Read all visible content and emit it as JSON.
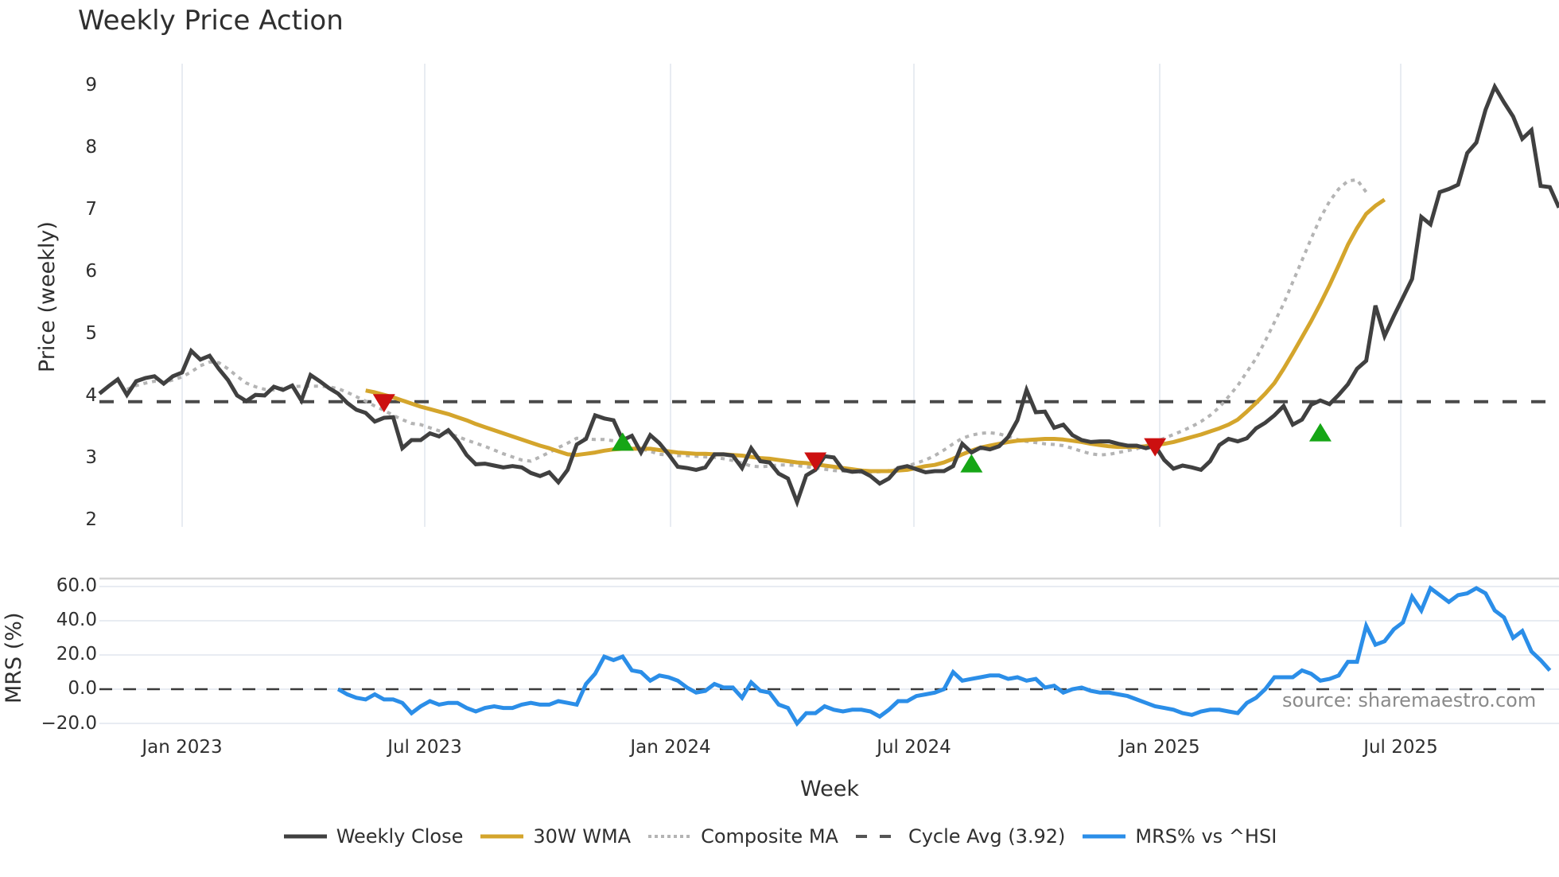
{
  "title": "Weekly Price Action",
  "source_label": "source: sharemaestro.com",
  "colors": {
    "weekly_close": "#404040",
    "wma": "#d4a52c",
    "composite": "#b4b4b4",
    "cycle_avg": "#4a4a4a",
    "mrs": "#2b8ee8",
    "buy": "#16a616",
    "sell": "#cc1010",
    "grid": "#e8ecf2"
  },
  "legend": [
    {
      "key": "weekly_close",
      "label": "Weekly Close",
      "style": "solid"
    },
    {
      "key": "wma",
      "label": "30W WMA",
      "style": "solid"
    },
    {
      "key": "composite",
      "label": "Composite MA",
      "style": "dotted"
    },
    {
      "key": "cycle_avg",
      "label": "Cycle Avg (3.92)",
      "style": "dashed"
    },
    {
      "key": "mrs",
      "label": "MRS% vs ^HSI",
      "style": "solid"
    }
  ],
  "chart_data": [
    {
      "type": "line",
      "title": "Weekly Price Action",
      "xlabel": "Week",
      "ylabel": "Price (weekly)",
      "ylim": [
        2,
        9
      ],
      "yticks": [
        2,
        3,
        4,
        5,
        6,
        7,
        8,
        9
      ],
      "xticks": [
        "Jan 2023",
        "Jul 2023",
        "Jan 2024",
        "Jul 2024",
        "Jan 2025",
        "Jul 2025"
      ],
      "grid": "vertical",
      "legend_position": "bottom",
      "cycle_avg": 3.92,
      "series": [
        {
          "name": "Weekly Close",
          "values": [
            4.05,
            4.17,
            4.28,
            4.03,
            4.25,
            4.3,
            4.33,
            4.21,
            4.33,
            4.39,
            4.74,
            4.6,
            4.66,
            4.45,
            4.27,
            4.02,
            3.93,
            4.03,
            4.02,
            4.16,
            4.11,
            4.18,
            3.94,
            4.35,
            4.25,
            4.14,
            4.05,
            3.9,
            3.79,
            3.74,
            3.6,
            3.66,
            3.67,
            3.17,
            3.3,
            3.3,
            3.41,
            3.36,
            3.46,
            3.29,
            3.06,
            2.91,
            2.92,
            2.89,
            2.86,
            2.88,
            2.86,
            2.77,
            2.72,
            2.78,
            2.62,
            2.82,
            3.23,
            3.32,
            3.7,
            3.65,
            3.62,
            3.3,
            3.37,
            3.1,
            3.38,
            3.25,
            3.07,
            2.87,
            2.85,
            2.82,
            2.86,
            3.07,
            3.07,
            3.05,
            2.85,
            3.17,
            2.96,
            2.94,
            2.76,
            2.68,
            2.3,
            2.73,
            2.82,
            3.04,
            3.02,
            2.82,
            2.79,
            2.8,
            2.72,
            2.6,
            2.68,
            2.85,
            2.88,
            2.83,
            2.78,
            2.8,
            2.8,
            2.88,
            3.24,
            3.1,
            3.18,
            3.15,
            3.2,
            3.35,
            3.62,
            4.11,
            3.75,
            3.76,
            3.5,
            3.55,
            3.38,
            3.3,
            3.27,
            3.28,
            3.28,
            3.24,
            3.21,
            3.21,
            3.17,
            3.21,
            2.98,
            2.84,
            2.89,
            2.86,
            2.82,
            2.96,
            3.22,
            3.32,
            3.28,
            3.33,
            3.49,
            3.58,
            3.7,
            3.85,
            3.55,
            3.63,
            3.87,
            3.94,
            3.88,
            4.03,
            4.2,
            4.45,
            4.58,
            5.47,
            4.98,
            5.3,
            5.6,
            5.9,
            6.9,
            6.78,
            7.3,
            7.35,
            7.42,
            7.93,
            8.1,
            8.63,
            9.0,
            8.75,
            8.52,
            8.16,
            8.3,
            7.4,
            7.38,
            7.05
          ]
        },
        {
          "name": "30W WMA",
          "start_index": 29,
          "values": [
            4.1,
            4.07,
            4.03,
            3.99,
            3.94,
            3.89,
            3.84,
            3.8,
            3.76,
            3.72,
            3.67,
            3.62,
            3.56,
            3.51,
            3.46,
            3.41,
            3.36,
            3.31,
            3.26,
            3.21,
            3.17,
            3.12,
            3.07,
            3.06,
            3.08,
            3.1,
            3.13,
            3.15,
            3.16,
            3.16,
            3.16,
            3.16,
            3.14,
            3.12,
            3.1,
            3.09,
            3.08,
            3.08,
            3.07,
            3.07,
            3.06,
            3.05,
            3.03,
            3.01,
            3.0,
            2.98,
            2.96,
            2.94,
            2.93,
            2.91,
            2.89,
            2.87,
            2.85,
            2.83,
            2.81,
            2.8,
            2.8,
            2.8,
            2.81,
            2.82,
            2.85,
            2.88,
            2.9,
            2.94,
            3.0,
            3.07,
            3.13,
            3.18,
            3.21,
            3.24,
            3.27,
            3.29,
            3.3,
            3.31,
            3.32,
            3.32,
            3.31,
            3.29,
            3.27,
            3.24,
            3.22,
            3.2,
            3.19,
            3.19,
            3.19,
            3.2,
            3.22,
            3.24,
            3.27,
            3.31,
            3.35,
            3.39,
            3.44,
            3.49,
            3.55,
            3.63,
            3.76,
            3.9,
            4.05,
            4.22,
            4.45,
            4.7,
            4.96,
            5.22,
            5.5,
            5.8,
            6.12,
            6.45,
            6.72,
            6.95,
            7.08,
            7.18
          ]
        },
        {
          "name": "Composite MA",
          "start_index": 3,
          "values": [
            4.12,
            4.18,
            4.22,
            4.25,
            4.23,
            4.27,
            4.32,
            4.4,
            4.5,
            4.56,
            4.55,
            4.45,
            4.33,
            4.22,
            4.16,
            4.12,
            4.11,
            4.14,
            4.16,
            4.17,
            4.17,
            4.17,
            4.16,
            4.13,
            4.07,
            4.0,
            3.93,
            3.85,
            3.78,
            3.7,
            3.63,
            3.57,
            3.55,
            3.5,
            3.45,
            3.41,
            3.36,
            3.3,
            3.25,
            3.2,
            3.14,
            3.08,
            3.03,
            2.98,
            2.96,
            3.03,
            3.1,
            3.18,
            3.25,
            3.33,
            3.32,
            3.31,
            3.31,
            3.29,
            3.25,
            3.21,
            3.16,
            3.12,
            3.07,
            3.06,
            3.05,
            3.05,
            3.04,
            3.03,
            3.02,
            3.0,
            2.97,
            2.93,
            2.88,
            2.87,
            2.88,
            2.9,
            2.9,
            2.89,
            2.87,
            2.85,
            2.83,
            2.81,
            2.8,
            2.79,
            2.78,
            2.78,
            2.79,
            2.81,
            2.84,
            2.88,
            2.93,
            2.98,
            3.05,
            3.14,
            3.24,
            3.33,
            3.38,
            3.41,
            3.42,
            3.4,
            3.36,
            3.31,
            3.28,
            3.26,
            3.24,
            3.23,
            3.21,
            3.17,
            3.12,
            3.08,
            3.06,
            3.07,
            3.1,
            3.13,
            3.16,
            3.21,
            3.27,
            3.33,
            3.39,
            3.45,
            3.52,
            3.6,
            3.7,
            3.83,
            4.0,
            4.18,
            4.4,
            4.62,
            4.9,
            5.2,
            5.5,
            5.85,
            6.2,
            6.55,
            6.88,
            7.15,
            7.35,
            7.48,
            7.5,
            7.3
          ]
        },
        {
          "name": "Sell signals",
          "indices": [
            31,
            78,
            115
          ],
          "values": [
            3.9,
            2.96,
            3.19
          ]
        },
        {
          "name": "Buy signals",
          "indices": [
            57,
            95,
            133
          ],
          "values": [
            3.27,
            2.92,
            3.42
          ]
        }
      ]
    },
    {
      "type": "line",
      "ylabel": "MRS (%)",
      "ylim": [
        -25,
        62
      ],
      "yticks": [
        "-20.0",
        "0.0",
        "20.0",
        "40.0",
        "60.0"
      ],
      "reference_line": 0,
      "series": [
        {
          "name": "MRS% vs ^HSI",
          "start_index": 26,
          "values": [
            0,
            -3,
            -5,
            -6,
            -3,
            -6,
            -6,
            -8,
            -14,
            -10,
            -7,
            -9,
            -8,
            -8,
            -11,
            -13,
            -11,
            -10,
            -11,
            -11,
            -9,
            -8,
            -9,
            -9,
            -7,
            -8,
            -9,
            3,
            9,
            19,
            17,
            19,
            11,
            10,
            5,
            8,
            7,
            5,
            1,
            -2,
            -1,
            3,
            1,
            1,
            -5,
            4,
            -1,
            -2,
            -9,
            -11,
            -20,
            -14,
            -14,
            -10,
            -12,
            -13,
            -12,
            -12,
            -13,
            -16,
            -12,
            -7,
            -7,
            -4,
            -3,
            -2,
            0,
            10,
            5,
            6,
            7,
            8,
            8,
            6,
            7,
            5,
            6,
            1,
            2,
            -2,
            0,
            1,
            -1,
            -2,
            -2,
            -3,
            -4,
            -6,
            -8,
            -10,
            -11,
            -12,
            -14,
            -15,
            -13,
            -12,
            -12,
            -13,
            -14,
            -8,
            -5,
            0,
            7,
            7,
            7,
            11,
            9,
            5,
            6,
            8,
            16,
            16,
            37,
            26,
            28,
            35,
            39,
            54,
            46,
            59,
            55,
            51,
            55,
            56,
            59,
            56,
            46,
            42,
            30,
            34,
            22,
            17,
            11
          ]
        }
      ]
    }
  ],
  "axes": {
    "price_ylabel": "Price (weekly)",
    "mrs_ylabel": "MRS (%)",
    "xlabel": "Week",
    "price_ticks": [
      "9",
      "8",
      "7",
      "6",
      "5",
      "4",
      "3",
      "2"
    ],
    "mrs_ticks": [
      "60.0",
      "40.0",
      "20.0",
      "0.0",
      "−20.0"
    ],
    "x_ticks": [
      "Jan 2023",
      "Jul 2023",
      "Jan 2024",
      "Jul 2024",
      "Jan 2025",
      "Jul 2025"
    ]
  }
}
